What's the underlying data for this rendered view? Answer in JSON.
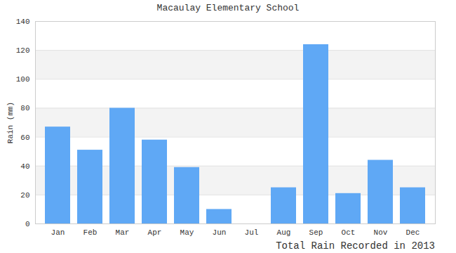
{
  "chart_data": {
    "type": "bar",
    "title": "Macaulay Elementary School",
    "caption": "Total Rain Recorded in 2013",
    "y_label": "Rain (mm)",
    "categories": [
      "Jan",
      "Feb",
      "Mar",
      "Apr",
      "May",
      "Jun",
      "Jul",
      "Aug",
      "Sep",
      "Oct",
      "Nov",
      "Dec"
    ],
    "values": [
      67,
      51,
      80,
      58,
      39,
      10,
      0,
      25,
      124,
      21,
      44,
      25
    ],
    "color": "#5fa8f5",
    "ylim": [
      0,
      140
    ],
    "yticks": [
      0,
      20,
      40,
      60,
      80,
      100,
      120,
      140
    ],
    "grid": true
  }
}
